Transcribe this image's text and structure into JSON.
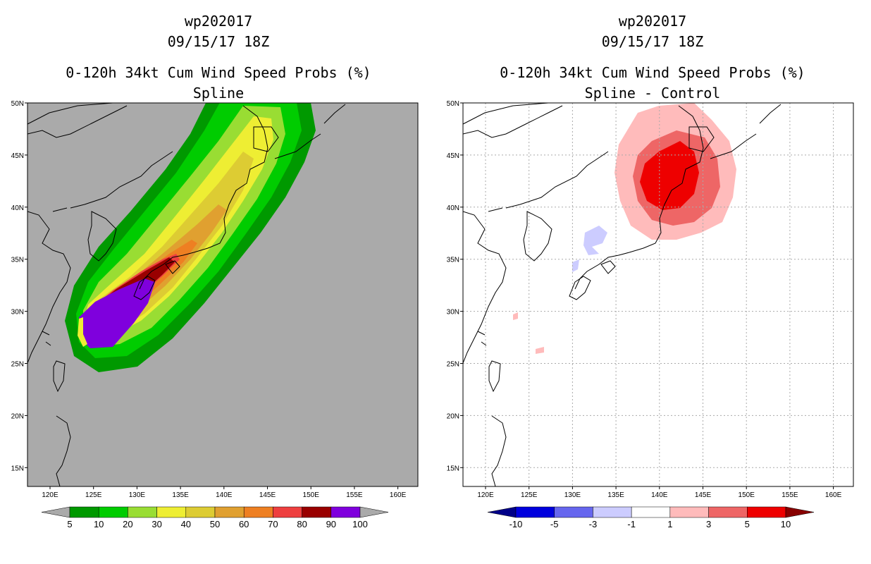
{
  "left": {
    "title": [
      "wp202017",
      "09/15/17 18Z",
      "0-120h 34kt Cum Wind Speed Probs (%)",
      "Spline"
    ],
    "colorbar": {
      "labels": [
        "5",
        "10",
        "20",
        "30",
        "40",
        "50",
        "60",
        "70",
        "80",
        "90",
        "100"
      ],
      "colors": [
        "#009900",
        "#00cc00",
        "#99dd33",
        "#eeee33",
        "#ddcc33",
        "#e0a030",
        "#ee7f22",
        "#ee3f3f",
        "#990000",
        "#7f00dd"
      ],
      "under_color": "#aaaaaa",
      "over_color": "#aaaaaa"
    },
    "background_color": "#aaaaaa"
  },
  "right": {
    "title": [
      "wp202017",
      "09/15/17 18Z",
      "0-120h 34kt Cum Wind Speed Probs (%)",
      "Spline - Control"
    ],
    "colorbar": {
      "labels": [
        "-10",
        "-5",
        "-3",
        "-1",
        "1",
        "3",
        "5",
        "10"
      ],
      "colors": [
        "#0000dd",
        "#6666ee",
        "#ccccff",
        "#ffffff",
        "#ffbbbb",
        "#ee6666",
        "#ee0000"
      ],
      "under_color": "#000088",
      "over_color": "#880000"
    },
    "background_color": "#ffffff"
  },
  "axes": {
    "lon_ticks": [
      "120E",
      "125E",
      "130E",
      "135E",
      "140E",
      "145E",
      "150E",
      "155E",
      "160E"
    ],
    "lat_ticks": [
      "50N",
      "45N",
      "40N",
      "35N",
      "30N",
      "25N",
      "20N",
      "15N"
    ]
  }
}
